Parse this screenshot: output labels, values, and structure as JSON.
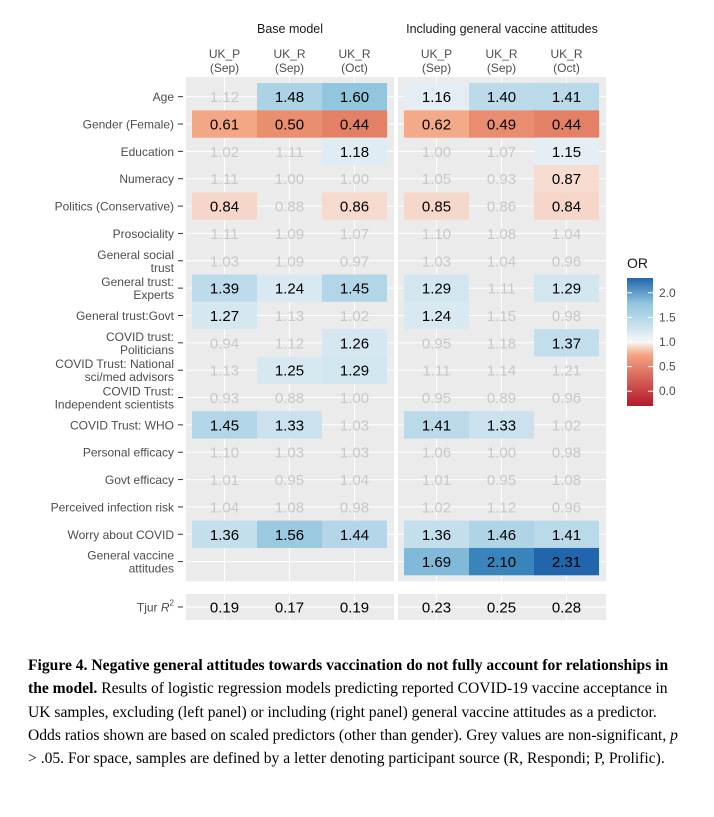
{
  "chart_data": {
    "type": "heatmap",
    "panels": [
      {
        "title": "Base model",
        "columns": [
          [
            "UK_P",
            "(Sep)"
          ],
          [
            "UK_R",
            "(Sep)"
          ],
          [
            "UK_R",
            "(Oct)"
          ]
        ]
      },
      {
        "title": "Including general vaccine attitudes",
        "columns": [
          [
            "UK_P",
            "(Sep)"
          ],
          [
            "UK_R",
            "(Sep)"
          ],
          [
            "UK_R",
            "(Oct)"
          ]
        ]
      }
    ],
    "rows": [
      [
        "Age"
      ],
      [
        "Gender (Female)"
      ],
      [
        "Education"
      ],
      [
        "Numeracy"
      ],
      [
        "Politics (Conservative)"
      ],
      [
        "Prosociality"
      ],
      [
        "General social",
        "trust"
      ],
      [
        "General trust:",
        "Experts"
      ],
      [
        "General trust:Govt"
      ],
      [
        "COVID trust:",
        "Politicians"
      ],
      [
        "COVID Trust: National",
        "sci/med advisors"
      ],
      [
        "COVID Trust:",
        "Independent scientists"
      ],
      [
        "COVID Trust: WHO"
      ],
      [
        "Personal efficacy"
      ],
      [
        "Govt efficacy"
      ],
      [
        "Perceived infection risk"
      ],
      [
        "Worry about COVID"
      ],
      [
        "General vaccine",
        "attitudes"
      ]
    ],
    "values": [
      [
        1.12,
        1.48,
        1.6,
        1.16,
        1.4,
        1.41
      ],
      [
        0.61,
        0.5,
        0.44,
        0.62,
        0.49,
        0.44
      ],
      [
        1.02,
        1.11,
        1.18,
        1.0,
        1.07,
        1.15
      ],
      [
        1.11,
        1.0,
        1.0,
        1.05,
        0.93,
        0.87
      ],
      [
        0.84,
        0.88,
        0.86,
        0.85,
        0.86,
        0.84
      ],
      [
        1.11,
        1.09,
        1.07,
        1.1,
        1.08,
        1.04
      ],
      [
        1.03,
        1.09,
        0.97,
        1.03,
        1.04,
        0.96
      ],
      [
        1.39,
        1.24,
        1.45,
        1.29,
        1.11,
        1.29
      ],
      [
        1.27,
        1.13,
        1.02,
        1.24,
        1.15,
        0.98
      ],
      [
        0.94,
        1.12,
        1.26,
        0.95,
        1.18,
        1.37
      ],
      [
        1.13,
        1.25,
        1.29,
        1.11,
        1.14,
        1.21
      ],
      [
        0.93,
        0.88,
        1.0,
        0.95,
        0.89,
        0.96
      ],
      [
        1.45,
        1.33,
        1.03,
        1.41,
        1.33,
        1.02
      ],
      [
        1.1,
        1.03,
        1.03,
        1.06,
        1.0,
        0.98
      ],
      [
        1.01,
        0.95,
        1.04,
        1.01,
        0.95,
        1.08
      ],
      [
        1.04,
        1.08,
        0.98,
        1.02,
        1.12,
        0.96
      ],
      [
        1.36,
        1.56,
        1.44,
        1.36,
        1.46,
        1.41
      ],
      [
        null,
        null,
        null,
        1.69,
        2.1,
        2.31
      ]
    ],
    "significant": [
      [
        false,
        true,
        true,
        true,
        true,
        true
      ],
      [
        true,
        true,
        true,
        true,
        true,
        true
      ],
      [
        false,
        false,
        true,
        false,
        false,
        true
      ],
      [
        false,
        false,
        false,
        false,
        false,
        true
      ],
      [
        true,
        false,
        true,
        true,
        false,
        true
      ],
      [
        false,
        false,
        false,
        false,
        false,
        false
      ],
      [
        false,
        false,
        false,
        false,
        false,
        false
      ],
      [
        true,
        true,
        true,
        true,
        false,
        true
      ],
      [
        true,
        false,
        false,
        true,
        false,
        false
      ],
      [
        false,
        false,
        true,
        false,
        false,
        true
      ],
      [
        false,
        true,
        true,
        false,
        false,
        false
      ],
      [
        false,
        false,
        false,
        false,
        false,
        false
      ],
      [
        true,
        true,
        false,
        true,
        true,
        false
      ],
      [
        false,
        false,
        false,
        false,
        false,
        false
      ],
      [
        false,
        false,
        false,
        false,
        false,
        false
      ],
      [
        false,
        false,
        false,
        false,
        false,
        false
      ],
      [
        true,
        true,
        true,
        true,
        true,
        true
      ],
      [
        false,
        false,
        false,
        true,
        true,
        true
      ]
    ],
    "fit_row_label": "Tjur",
    "fit_row_label_symbol": "R",
    "fit_row_label_sup": "2",
    "fit_values": [
      0.19,
      0.17,
      0.19,
      0.23,
      0.25,
      0.28
    ],
    "legend": {
      "title": "OR",
      "ticks": [
        2.0,
        1.5,
        1.0,
        0.5,
        0.0
      ],
      "tick_labels": [
        "2.0",
        "1.5",
        "1.0",
        "0.5",
        "0.0"
      ],
      "range": [
        -0.3,
        2.3
      ],
      "position": "right",
      "colors": {
        "high": "#2166ac",
        "mid": "#f7f7f7",
        "low": "#b2182b"
      }
    },
    "grid": true,
    "panel_background": "#ebebeb",
    "significant_text_color": "#000000",
    "nonsignificant_text_color": "#c8c8c8"
  },
  "caption": {
    "bold": "Figure 4. Negative general attitudes towards vaccination do not fully account for relationships in the model.",
    "text_1": " Results of logistic regression models predicting reported COVID-19 vaccine acceptance in UK samples, excluding (left panel) or including (right panel) general vaccine attitudes as a predictor. Odds ratios shown are based on scaled predictors (other than gender). Grey values are non-significant, ",
    "italic_p": "p",
    "text_2": " > .05. For space, samples are defined by a letter denoting participant source (R, Respondi; P, Prolific)."
  }
}
